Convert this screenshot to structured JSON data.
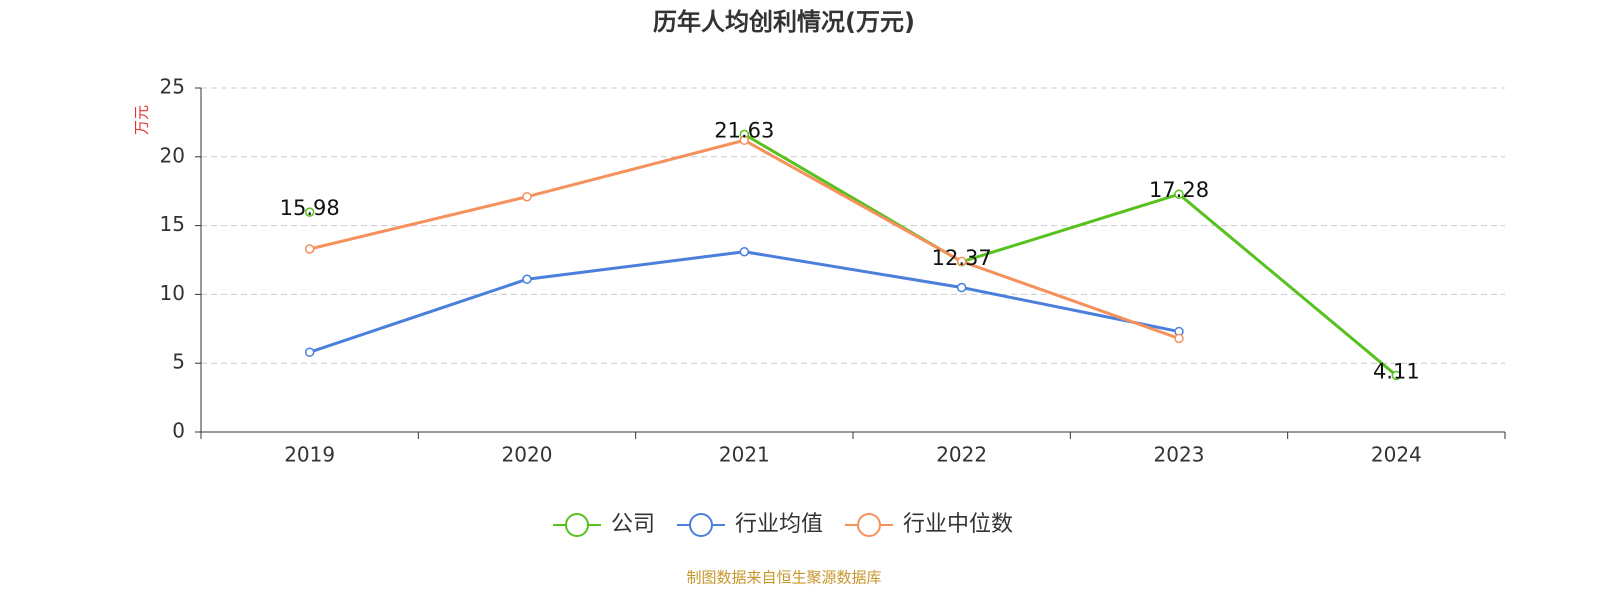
{
  "chart_data": {
    "type": "line",
    "title": "历年人均创利情况(万元)",
    "y_label": "万元",
    "categories": [
      "2019",
      "2020",
      "2021",
      "2022",
      "2023",
      "2024"
    ],
    "series": [
      {
        "name": "公司",
        "color": "#57c11e",
        "values": [
          15.98,
          null,
          21.63,
          12.37,
          17.28,
          4.11
        ],
        "labels": true
      },
      {
        "name": "行业均值",
        "color": "#4a7fdc",
        "values": [
          5.8,
          11.1,
          13.1,
          10.5,
          7.3,
          null
        ]
      },
      {
        "name": "行业中位数",
        "color": "#f5915c",
        "values": [
          13.3,
          17.1,
          21.2,
          12.4,
          6.8,
          null
        ]
      }
    ],
    "ylim": [
      0,
      25
    ],
    "yticks": [
      0,
      5,
      10,
      15,
      20,
      25
    ],
    "grid": true,
    "source": "制图数据来自恒生聚源数据库"
  }
}
